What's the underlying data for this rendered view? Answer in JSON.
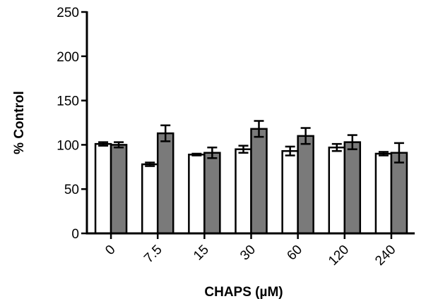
{
  "chart_data": {
    "type": "bar",
    "title": "",
    "xlabel": "CHAPS (µM)",
    "ylabel": "% Control",
    "ylim": [
      0,
      250
    ],
    "yticks": [
      0,
      50,
      100,
      150,
      200,
      250
    ],
    "categories": [
      "0",
      "7.5",
      "15",
      "30",
      "60",
      "120",
      "240"
    ],
    "grid": false,
    "legend": "none",
    "series": [
      {
        "color": "#ffffff",
        "values": [
          101,
          78,
          89,
          95,
          93,
          97,
          90
        ],
        "errors": [
          2,
          2,
          1,
          4,
          5,
          4,
          2
        ]
      },
      {
        "color": "#7a7a7a",
        "values": [
          100,
          113,
          91,
          118,
          110,
          103,
          91
        ],
        "errors": [
          3,
          9,
          6,
          9,
          9,
          8,
          11
        ]
      }
    ]
  }
}
